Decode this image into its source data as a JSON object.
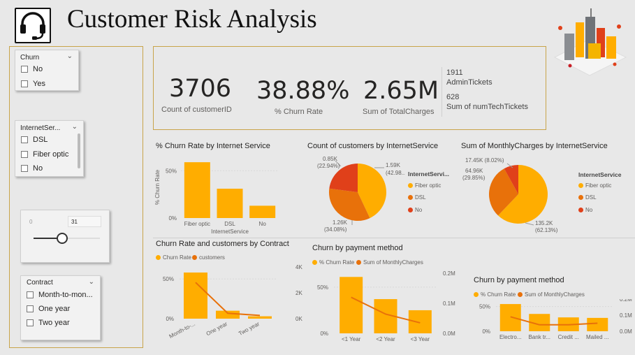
{
  "header": {
    "title": "Customer Risk Analysis"
  },
  "colors": {
    "orange": "#ffad00",
    "dark_orange": "#e8710a",
    "red": "#e0401a",
    "border": "#c8a44a"
  },
  "slicers": {
    "churn": {
      "title": "Churn",
      "options": [
        "No",
        "Yes"
      ]
    },
    "internet": {
      "title": "InternetSer...",
      "options": [
        "DSL",
        "Fiber optic",
        "No"
      ]
    },
    "tenure": {
      "min": "0",
      "value": "31"
    },
    "contract": {
      "title": "Contract",
      "options": [
        "Month-to-mon...",
        "One year",
        "Two year"
      ]
    }
  },
  "kpis": {
    "count": {
      "value": "3706",
      "label": "Count of customerID"
    },
    "churn_rate": {
      "value": "38.88%",
      "label": "% Churn Rate"
    },
    "charges": {
      "value": "2.65M",
      "label": "Sum of TotalCharges"
    },
    "admin": {
      "value": "1911",
      "label": "AdminTickets"
    },
    "tech": {
      "value": "628",
      "label": "Sum of numTechTickets"
    }
  },
  "charts": {
    "rate_internet": {
      "title": "% Churn Rate by Internet Service",
      "ylabel": "% Churn Rate",
      "xlabel": "InternetService",
      "yticks": [
        "50%",
        "0%"
      ]
    },
    "count_internet": {
      "title": "Count of customers by InternetService",
      "legend_title": "InternetServi...",
      "labels": [
        "1.59K",
        "(42.98...",
        "0.85K",
        "(22.94%)",
        "1.26K",
        "(34.08%)"
      ]
    },
    "monthly_internet": {
      "title": "Sum of MonthlyCharges by InternetService",
      "legend_title": "InternetService",
      "labels": [
        "17.45K (8.02%)",
        "64.96K",
        "(29.85%)",
        "135.2K",
        "(62.13%)"
      ]
    },
    "contract": {
      "title": "Churn Rate and customers by Contract",
      "legend": [
        "Churn Rate",
        "customers"
      ],
      "yticks_left": [
        "50%",
        "0%"
      ],
      "yticks_right": [
        "4K",
        "2K",
        "0K"
      ]
    },
    "payment1": {
      "title": "Churn by payment method",
      "legend": [
        "% Churn Rate",
        "Sum of MonthlyCharges"
      ],
      "yticks_left": [
        "50%",
        "0%"
      ],
      "yticks_right": [
        "0.2M",
        "0.1M",
        "0.0M"
      ]
    },
    "payment2": {
      "title": "Churn by payment method",
      "legend": [
        "% Churn Rate",
        "Sum of MonthlyCharges"
      ],
      "yticks_left": [
        "50%",
        "0%"
      ],
      "yticks_right": [
        "0.2M",
        "0.1M",
        "0.0M"
      ]
    }
  },
  "legend_items": [
    "Fiber optic",
    "DSL",
    "No"
  ],
  "chart_data": [
    {
      "type": "bar",
      "title": "% Churn Rate by Internet Service",
      "categories": [
        "Fiber optic",
        "DSL",
        "No"
      ],
      "values": [
        0.59,
        0.31,
        0.13
      ],
      "ylabel": "% Churn Rate",
      "xlabel": "InternetService",
      "ylim": [
        0,
        0.65
      ]
    },
    {
      "type": "pie",
      "title": "Count of customers by InternetService",
      "categories": [
        "Fiber optic",
        "DSL",
        "No"
      ],
      "values": [
        1590,
        1260,
        850
      ],
      "percent": [
        42.98,
        34.08,
        22.94
      ]
    },
    {
      "type": "pie",
      "title": "Sum of MonthlyCharges by InternetService",
      "categories": [
        "Fiber optic",
        "DSL",
        "No"
      ],
      "values": [
        135200,
        64960,
        17450
      ],
      "percent": [
        62.13,
        29.85,
        8.02
      ]
    },
    {
      "type": "bar",
      "title": "Churn Rate and customers by Contract",
      "categories": [
        "Month-to-...",
        "One year",
        "Two year"
      ],
      "series": [
        {
          "name": "Churn Rate",
          "values": [
            0.58,
            0.1,
            0.03
          ]
        },
        {
          "name": "customers",
          "values": [
            2800,
            420,
            250
          ]
        }
      ],
      "ylim": [
        0,
        0.65
      ],
      "y2lim": [
        0,
        4000
      ]
    },
    {
      "type": "bar",
      "title": "Churn by payment method",
      "categories": [
        "<1 Year",
        "<2 Year",
        "<3 Year"
      ],
      "series": [
        {
          "name": "% Churn Rate",
          "values": [
            0.61,
            0.37,
            0.25
          ]
        },
        {
          "name": "Sum of MonthlyCharges",
          "values": [
            0.12,
            0.064,
            0.035
          ]
        }
      ],
      "ylim": [
        0,
        0.65
      ],
      "y2lim": [
        0,
        0.2
      ]
    },
    {
      "type": "bar",
      "title": "Churn by payment method",
      "categories": [
        "Electro...",
        "Bank tr...",
        "Credit ...",
        "Mailed ..."
      ],
      "series": [
        {
          "name": "% Churn Rate",
          "values": [
            0.55,
            0.35,
            0.28,
            0.27
          ]
        },
        {
          "name": "Sum of MonthlyCharges",
          "values": [
            0.09,
            0.04,
            0.04,
            0.05
          ]
        }
      ],
      "ylim": [
        0,
        0.65
      ],
      "y2lim": [
        0,
        0.2
      ]
    }
  ]
}
